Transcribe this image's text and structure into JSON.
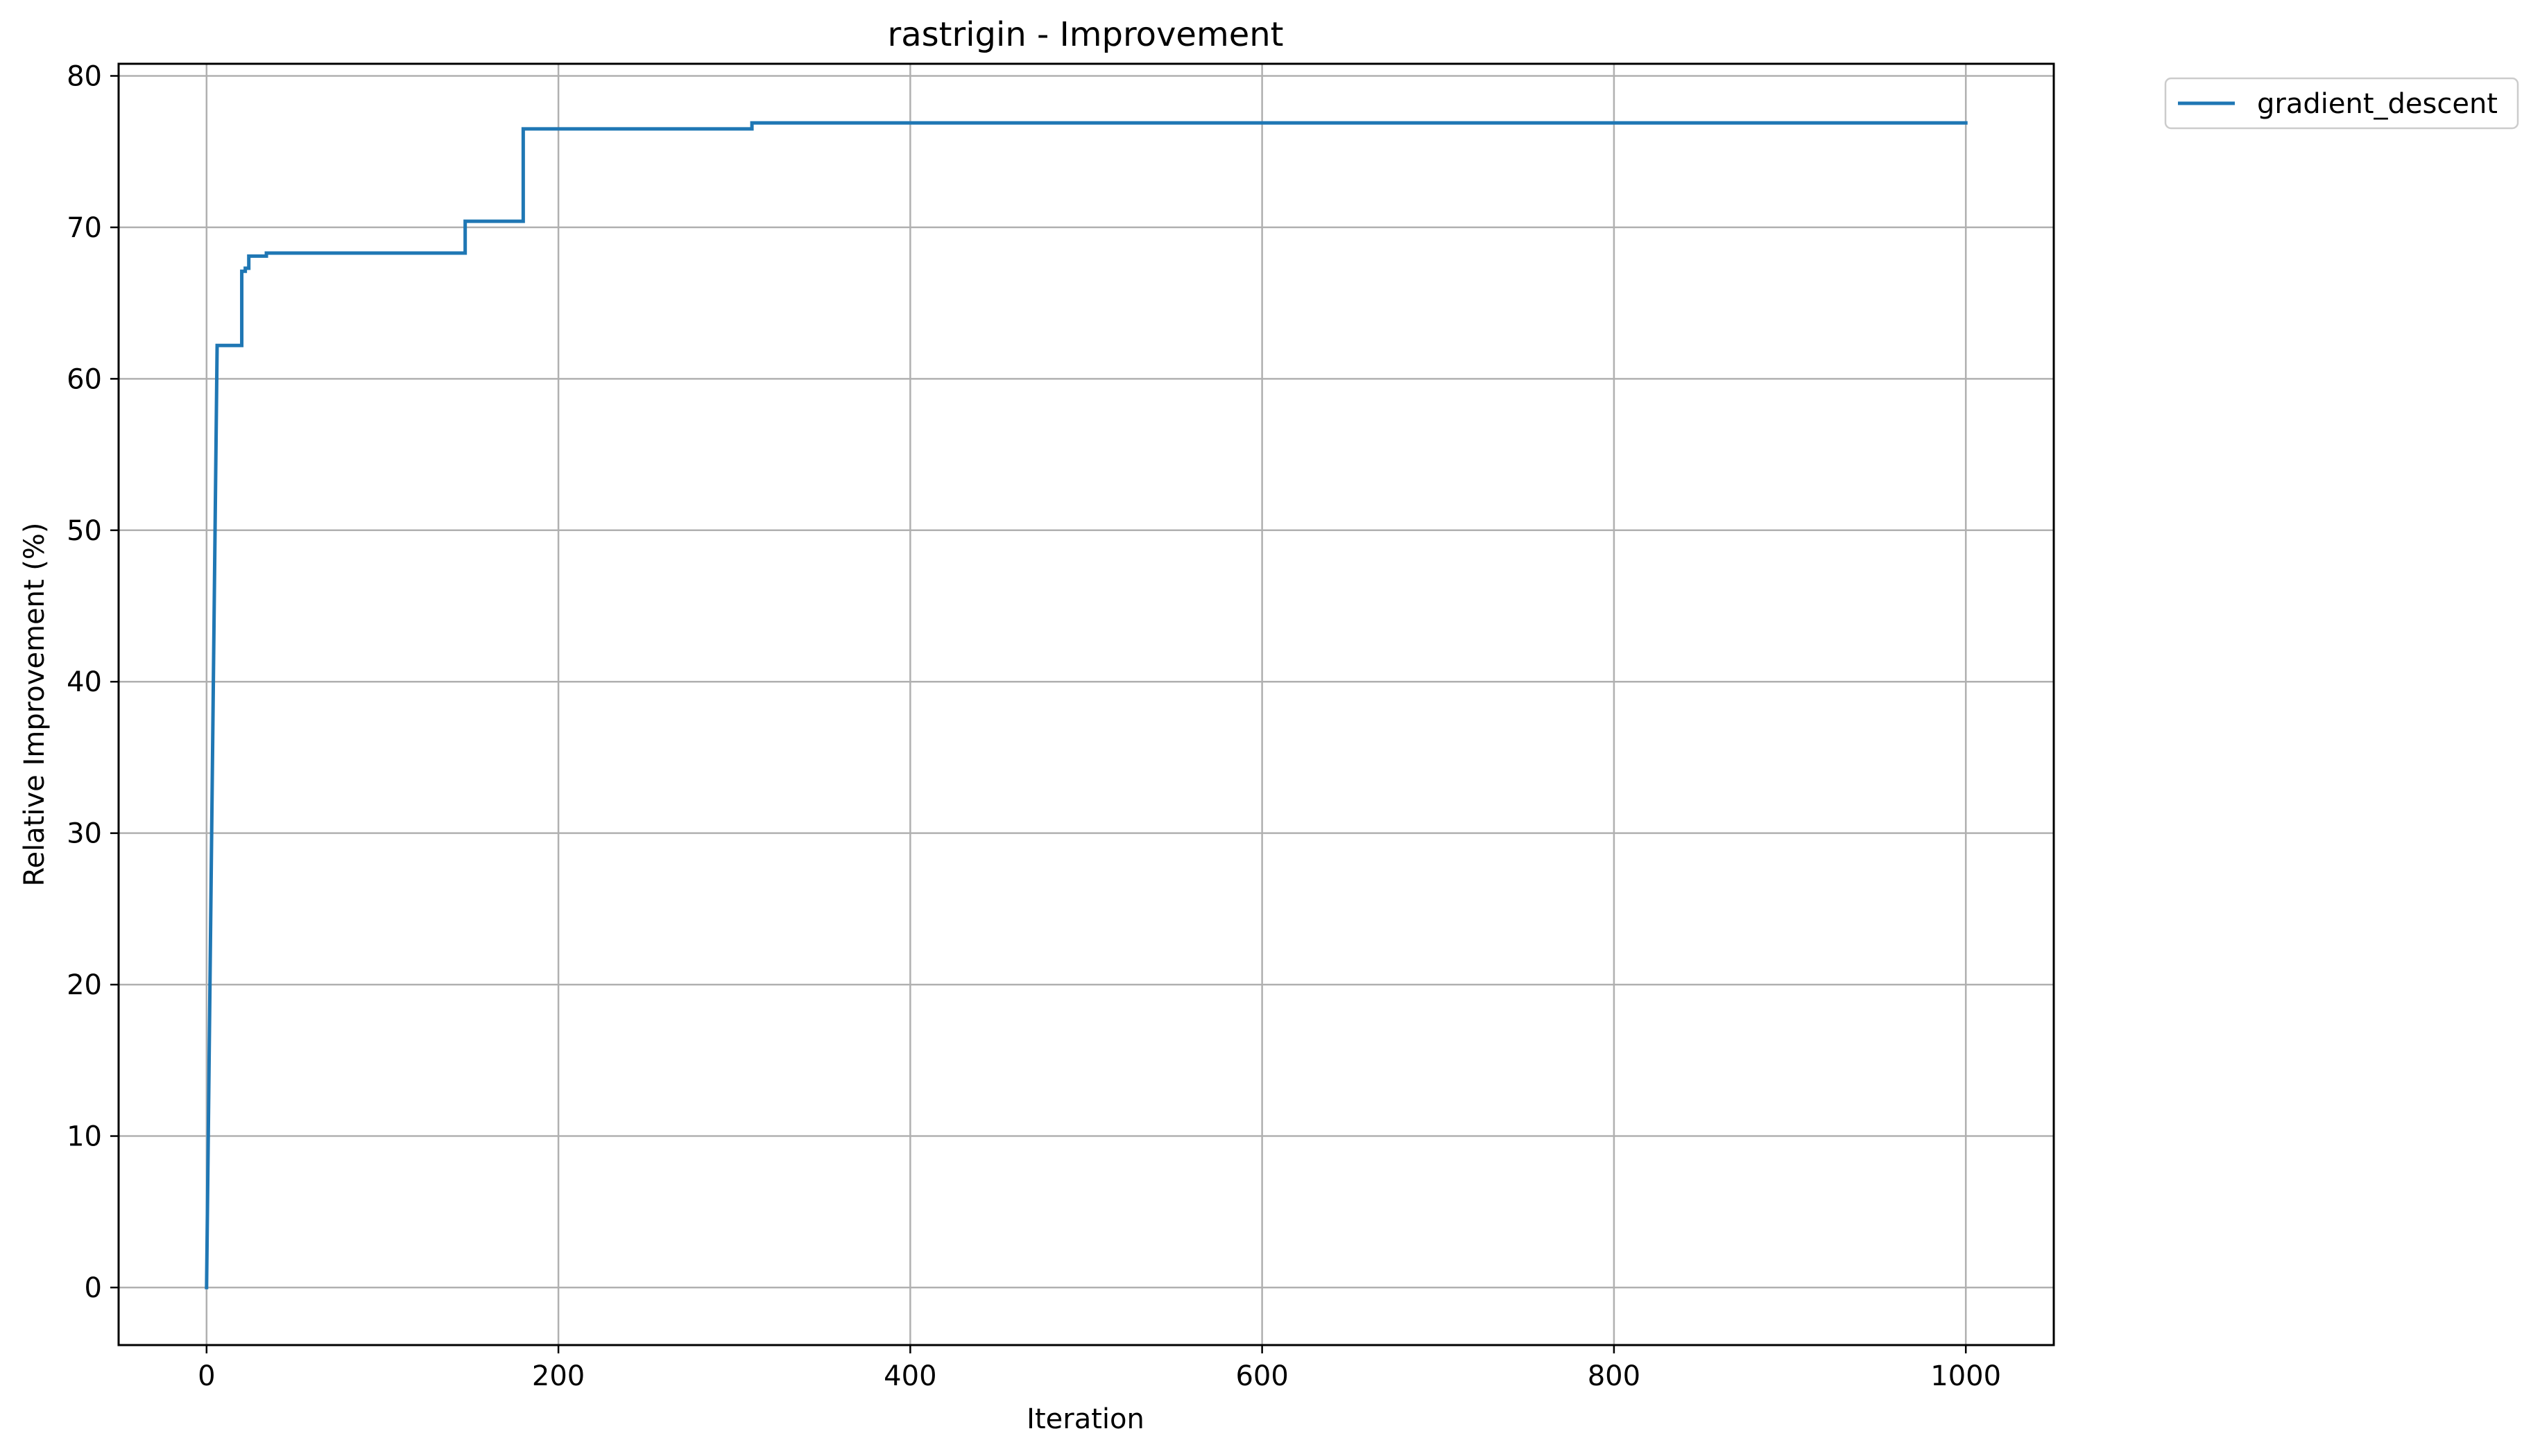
{
  "chart_data": {
    "type": "line",
    "title": "rastrigin - Improvement",
    "xlabel": "Iteration",
    "ylabel": "Relative Improvement (%)",
    "xlim": [
      -50,
      1050
    ],
    "ylim": [
      -3.8,
      80.8
    ],
    "xticks": [
      0,
      200,
      400,
      600,
      800,
      1000
    ],
    "yticks": [
      0,
      10,
      20,
      30,
      40,
      50,
      60,
      70,
      80
    ],
    "grid": true,
    "legend_position": "outside-top-right",
    "series": [
      {
        "name": "gradient_descent",
        "color": "#1f77b4",
        "x": [
          0,
          6,
          6,
          20,
          20,
          22,
          22,
          24,
          24,
          34,
          34,
          147,
          147,
          180,
          180,
          310,
          310,
          1000
        ],
        "y": [
          0,
          62.2,
          62.2,
          62.2,
          67.1,
          67.1,
          67.3,
          67.3,
          68.1,
          68.1,
          68.3,
          68.3,
          70.4,
          70.4,
          76.5,
          76.5,
          76.9,
          76.9
        ]
      }
    ]
  }
}
